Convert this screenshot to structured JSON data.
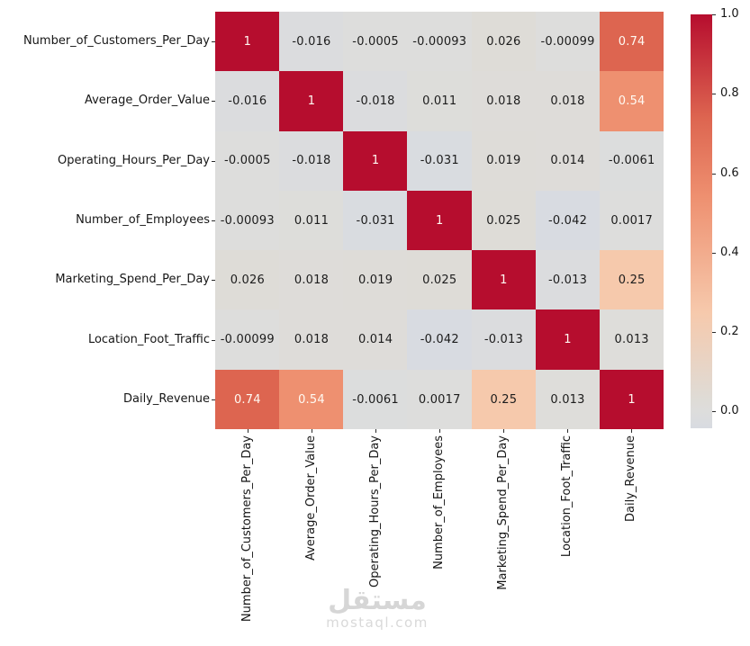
{
  "chart_data": {
    "type": "heatmap",
    "title": "",
    "variables": [
      "Number_of_Customers_Per_Day",
      "Average_Order_Value",
      "Operating_Hours_Per_Day",
      "Number_of_Employees",
      "Marketing_Spend_Per_Day",
      "Location_Foot_Traffic",
      "Daily_Revenue"
    ],
    "matrix": [
      [
        "1",
        "-0.016",
        "-0.0005",
        "-0.00093",
        "0.026",
        "-0.00099",
        "0.74"
      ],
      [
        "-0.016",
        "1",
        "-0.018",
        "0.011",
        "0.018",
        "0.018",
        "0.54"
      ],
      [
        "-0.0005",
        "-0.018",
        "1",
        "-0.031",
        "0.019",
        "0.014",
        "-0.0061"
      ],
      [
        "-0.00093",
        "0.011",
        "-0.031",
        "1",
        "0.025",
        "-0.042",
        "0.0017"
      ],
      [
        "0.026",
        "0.018",
        "0.019",
        "0.025",
        "1",
        "-0.013",
        "0.25"
      ],
      [
        "-0.00099",
        "0.018",
        "0.014",
        "-0.042",
        "-0.013",
        "1",
        "0.013"
      ],
      [
        "0.74",
        "0.54",
        "-0.0061",
        "0.0017",
        "0.25",
        "0.013",
        "1"
      ]
    ],
    "colorbar": {
      "tick_labels": [
        "1.0",
        "0.8",
        "0.6",
        "0.4",
        "0.2",
        "0.0"
      ],
      "tick_values": [
        1.0,
        0.8,
        0.6,
        0.4,
        0.2,
        0.0
      ],
      "vmin": -0.042,
      "vmax": 1.0
    },
    "colormap_anchors": [
      {
        "v": -0.042,
        "color": "#d8dbe1"
      },
      {
        "v": 0.0,
        "color": "#dddddc"
      },
      {
        "v": 0.026,
        "color": "#dedcd7"
      },
      {
        "v": 0.25,
        "color": "#f6c9ac"
      },
      {
        "v": 0.54,
        "color": "#ee9070"
      },
      {
        "v": 0.74,
        "color": "#dd6550"
      },
      {
        "v": 1.0,
        "color": "#b60d2e"
      }
    ],
    "annotation_colors": {
      "on_dark": "#fffaf3",
      "on_light": "#1c1c1c",
      "dark_threshold": 0.4
    },
    "legend_position": "right",
    "grid": false
  },
  "watermark": {
    "arabic": "مستقل",
    "latin": "mostaql.com"
  }
}
